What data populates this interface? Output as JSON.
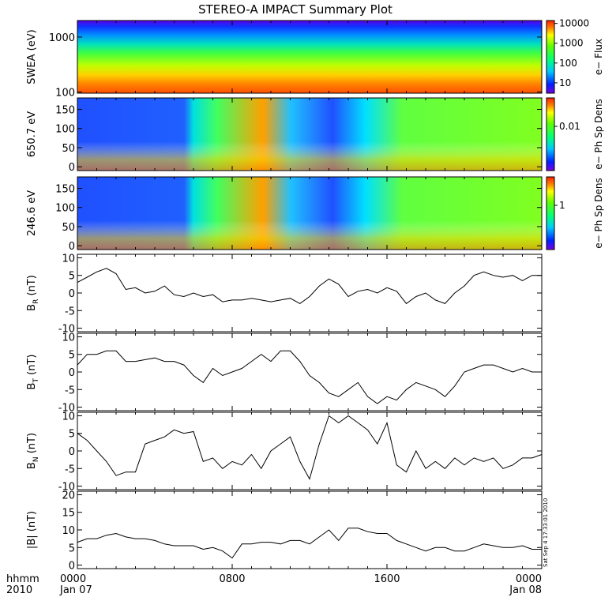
{
  "title": "STEREO-A IMPACT Summary Plot",
  "timestamp": "Sat Sep  4 17:33:01 2010",
  "time_axis": {
    "row1_label": "hhmm",
    "row2_label": "2010",
    "ticks": [
      {
        "t": 0,
        "label": "0000",
        "sub": "Jan 07"
      },
      {
        "t": 8,
        "label": "0800",
        "sub": ""
      },
      {
        "t": 16,
        "label": "1600",
        "sub": ""
      },
      {
        "t": 24,
        "label": "0000",
        "sub": "Jan 08"
      }
    ]
  },
  "colors": {
    "trace": "#000000",
    "frame": "#000000",
    "background": "#ffffff"
  },
  "chart_data": [
    {
      "type": "heatmap",
      "panel": "swea",
      "ylabel": "SWEA (eV)",
      "yscale": "log",
      "ylim": [
        95,
        2000
      ],
      "yticks": [
        {
          "v": 100,
          "label": "100"
        },
        {
          "v": 1000,
          "label": "1000"
        }
      ],
      "xlim": [
        0,
        24
      ],
      "colorbar": {
        "label": "e− Flux",
        "scale": "log",
        "range": [
          3,
          14000
        ],
        "ticks": [
          {
            "v": 10,
            "label": "10"
          },
          {
            "v": 100,
            "label": "100"
          },
          {
            "v": 1000,
            "label": "1000"
          },
          {
            "v": 10000,
            "label": "10000"
          }
        ]
      }
    },
    {
      "type": "heatmap",
      "panel": "pad650",
      "ylabel": "650.7 eV",
      "ylim": [
        -10,
        180
      ],
      "yticks": [
        {
          "v": 0,
          "label": "0"
        },
        {
          "v": 50,
          "label": "50"
        },
        {
          "v": 100,
          "label": "100"
        },
        {
          "v": 150,
          "label": "150"
        }
      ],
      "xlim": [
        0,
        24
      ],
      "colorbar": {
        "label": "e− Ph Sp Dens",
        "ticks": [
          {
            "v": 0.01,
            "label": "0.01"
          }
        ]
      }
    },
    {
      "type": "heatmap",
      "panel": "pad246",
      "ylabel": "246.6 eV",
      "ylim": [
        -10,
        180
      ],
      "yticks": [
        {
          "v": 0,
          "label": "0"
        },
        {
          "v": 50,
          "label": "50"
        },
        {
          "v": 100,
          "label": "100"
        },
        {
          "v": 150,
          "label": "150"
        }
      ],
      "xlim": [
        0,
        24
      ],
      "colorbar": {
        "label": "e− Ph Sp Dens",
        "ticks": [
          {
            "v": 1,
            "label": "1"
          }
        ]
      }
    },
    {
      "type": "line",
      "panel": "br",
      "ylabel_main": "B",
      "ylabel_sub": "R",
      "ylabel_unit": " (nT)",
      "ylim": [
        -11,
        11
      ],
      "yticks": [
        -10,
        -5,
        0,
        5,
        10
      ],
      "xlim": [
        0,
        24
      ],
      "x": [
        0,
        0.5,
        1,
        1.5,
        2,
        2.5,
        3,
        3.5,
        4,
        4.5,
        5,
        5.5,
        6,
        6.5,
        7,
        7.5,
        8,
        8.5,
        9,
        9.5,
        10,
        10.5,
        11,
        11.5,
        12,
        12.5,
        13,
        13.5,
        14,
        14.5,
        15,
        15.5,
        16,
        16.5,
        17,
        17.5,
        18,
        18.5,
        19,
        19.5,
        20,
        20.5,
        21,
        21.5,
        22,
        22.5,
        23,
        23.5,
        24
      ],
      "y": [
        3,
        4.5,
        6,
        7,
        5.5,
        1,
        1.5,
        0,
        0.5,
        2,
        -0.5,
        -1,
        0,
        -1,
        -0.5,
        -2.5,
        -2,
        -2,
        -1.5,
        -2,
        -2.5,
        -2,
        -1.5,
        -3,
        -1,
        2,
        4,
        2.5,
        -1,
        0.5,
        1,
        0,
        1.5,
        0.5,
        -3,
        -1,
        0,
        -2,
        -3,
        0,
        2,
        5,
        6,
        5,
        4.5,
        5,
        3.5,
        5,
        5
      ]
    },
    {
      "type": "line",
      "panel": "bt",
      "ylabel_main": "B",
      "ylabel_sub": "T",
      "ylabel_unit": " (nT)",
      "ylim": [
        -11,
        11
      ],
      "yticks": [
        -10,
        -5,
        0,
        5,
        10
      ],
      "xlim": [
        0,
        24
      ],
      "x": [
        0,
        0.5,
        1,
        1.5,
        2,
        2.5,
        3,
        3.5,
        4,
        4.5,
        5,
        5.5,
        6,
        6.5,
        7,
        7.5,
        8,
        8.5,
        9,
        9.5,
        10,
        10.5,
        11,
        11.5,
        12,
        12.5,
        13,
        13.5,
        14,
        14.5,
        15,
        15.5,
        16,
        16.5,
        17,
        17.5,
        18,
        18.5,
        19,
        19.5,
        20,
        20.5,
        21,
        21.5,
        22,
        22.5,
        23,
        23.5,
        24
      ],
      "y": [
        2,
        5,
        5,
        6,
        6,
        3,
        3,
        3.5,
        4,
        3,
        3,
        2,
        -1,
        -3,
        1,
        -1,
        0,
        1,
        3,
        5,
        3,
        6,
        6,
        3,
        -1,
        -3,
        -6,
        -7,
        -5,
        -3,
        -7,
        -9,
        -7,
        -8,
        -5,
        -3,
        -4,
        -5,
        -7,
        -4,
        0,
        1,
        2,
        2,
        1,
        0,
        1,
        0,
        0
      ]
    },
    {
      "type": "line",
      "panel": "bn",
      "ylabel_main": "B",
      "ylabel_sub": "N",
      "ylabel_unit": " (nT)",
      "ylim": [
        -11,
        11
      ],
      "yticks": [
        -10,
        -5,
        0,
        5,
        10
      ],
      "xlim": [
        0,
        24
      ],
      "x": [
        0,
        0.5,
        1,
        1.5,
        2,
        2.5,
        3,
        3.5,
        4,
        4.5,
        5,
        5.5,
        6,
        6.5,
        7,
        7.5,
        8,
        8.5,
        9,
        9.5,
        10,
        10.5,
        11,
        11.5,
        12,
        12.5,
        13,
        13.5,
        14,
        14.5,
        15,
        15.5,
        16,
        16.5,
        17,
        17.5,
        18,
        18.5,
        19,
        19.5,
        20,
        20.5,
        21,
        21.5,
        22,
        22.5,
        23,
        23.5,
        24
      ],
      "y": [
        5,
        3,
        0,
        -3,
        -7,
        -6,
        -6,
        2,
        3,
        4,
        6,
        5,
        5.5,
        -3,
        -2,
        -5,
        -3,
        -4,
        -1,
        -5,
        0,
        2,
        4,
        -3,
        -8,
        2,
        10,
        8,
        10,
        8,
        6,
        2,
        8,
        -4,
        -6,
        0,
        -5,
        -3,
        -5,
        -2,
        -4,
        -2,
        -3,
        -2,
        -5,
        -4,
        -2,
        -2,
        -1
      ]
    },
    {
      "type": "line",
      "panel": "bmag",
      "ylabel": "|B| (nT)",
      "ylim": [
        -1,
        21
      ],
      "yticks": [
        0,
        5,
        10,
        15,
        20
      ],
      "xlim": [
        0,
        24
      ],
      "x": [
        0,
        0.5,
        1,
        1.5,
        2,
        2.5,
        3,
        3.5,
        4,
        4.5,
        5,
        5.5,
        6,
        6.5,
        7,
        7.5,
        8,
        8.5,
        9,
        9.5,
        10,
        10.5,
        11,
        11.5,
        12,
        12.5,
        13,
        13.5,
        14,
        14.5,
        15,
        15.5,
        16,
        16.5,
        17,
        17.5,
        18,
        18.5,
        19,
        19.5,
        20,
        20.5,
        21,
        21.5,
        22,
        22.5,
        23,
        23.5,
        24
      ],
      "y": [
        6.5,
        7.5,
        7.5,
        8.5,
        9,
        8,
        7.5,
        7.5,
        7,
        6,
        5.5,
        5.5,
        5.5,
        4.5,
        5,
        4,
        2,
        6,
        6,
        6.5,
        6.5,
        6,
        7,
        7,
        6,
        8,
        10,
        7,
        10.5,
        10.5,
        9.5,
        9,
        9,
        7,
        6,
        5,
        4,
        5,
        5,
        4,
        4,
        5,
        6,
        5.5,
        5,
        5,
        5.5,
        4.5,
        4.5
      ]
    }
  ]
}
